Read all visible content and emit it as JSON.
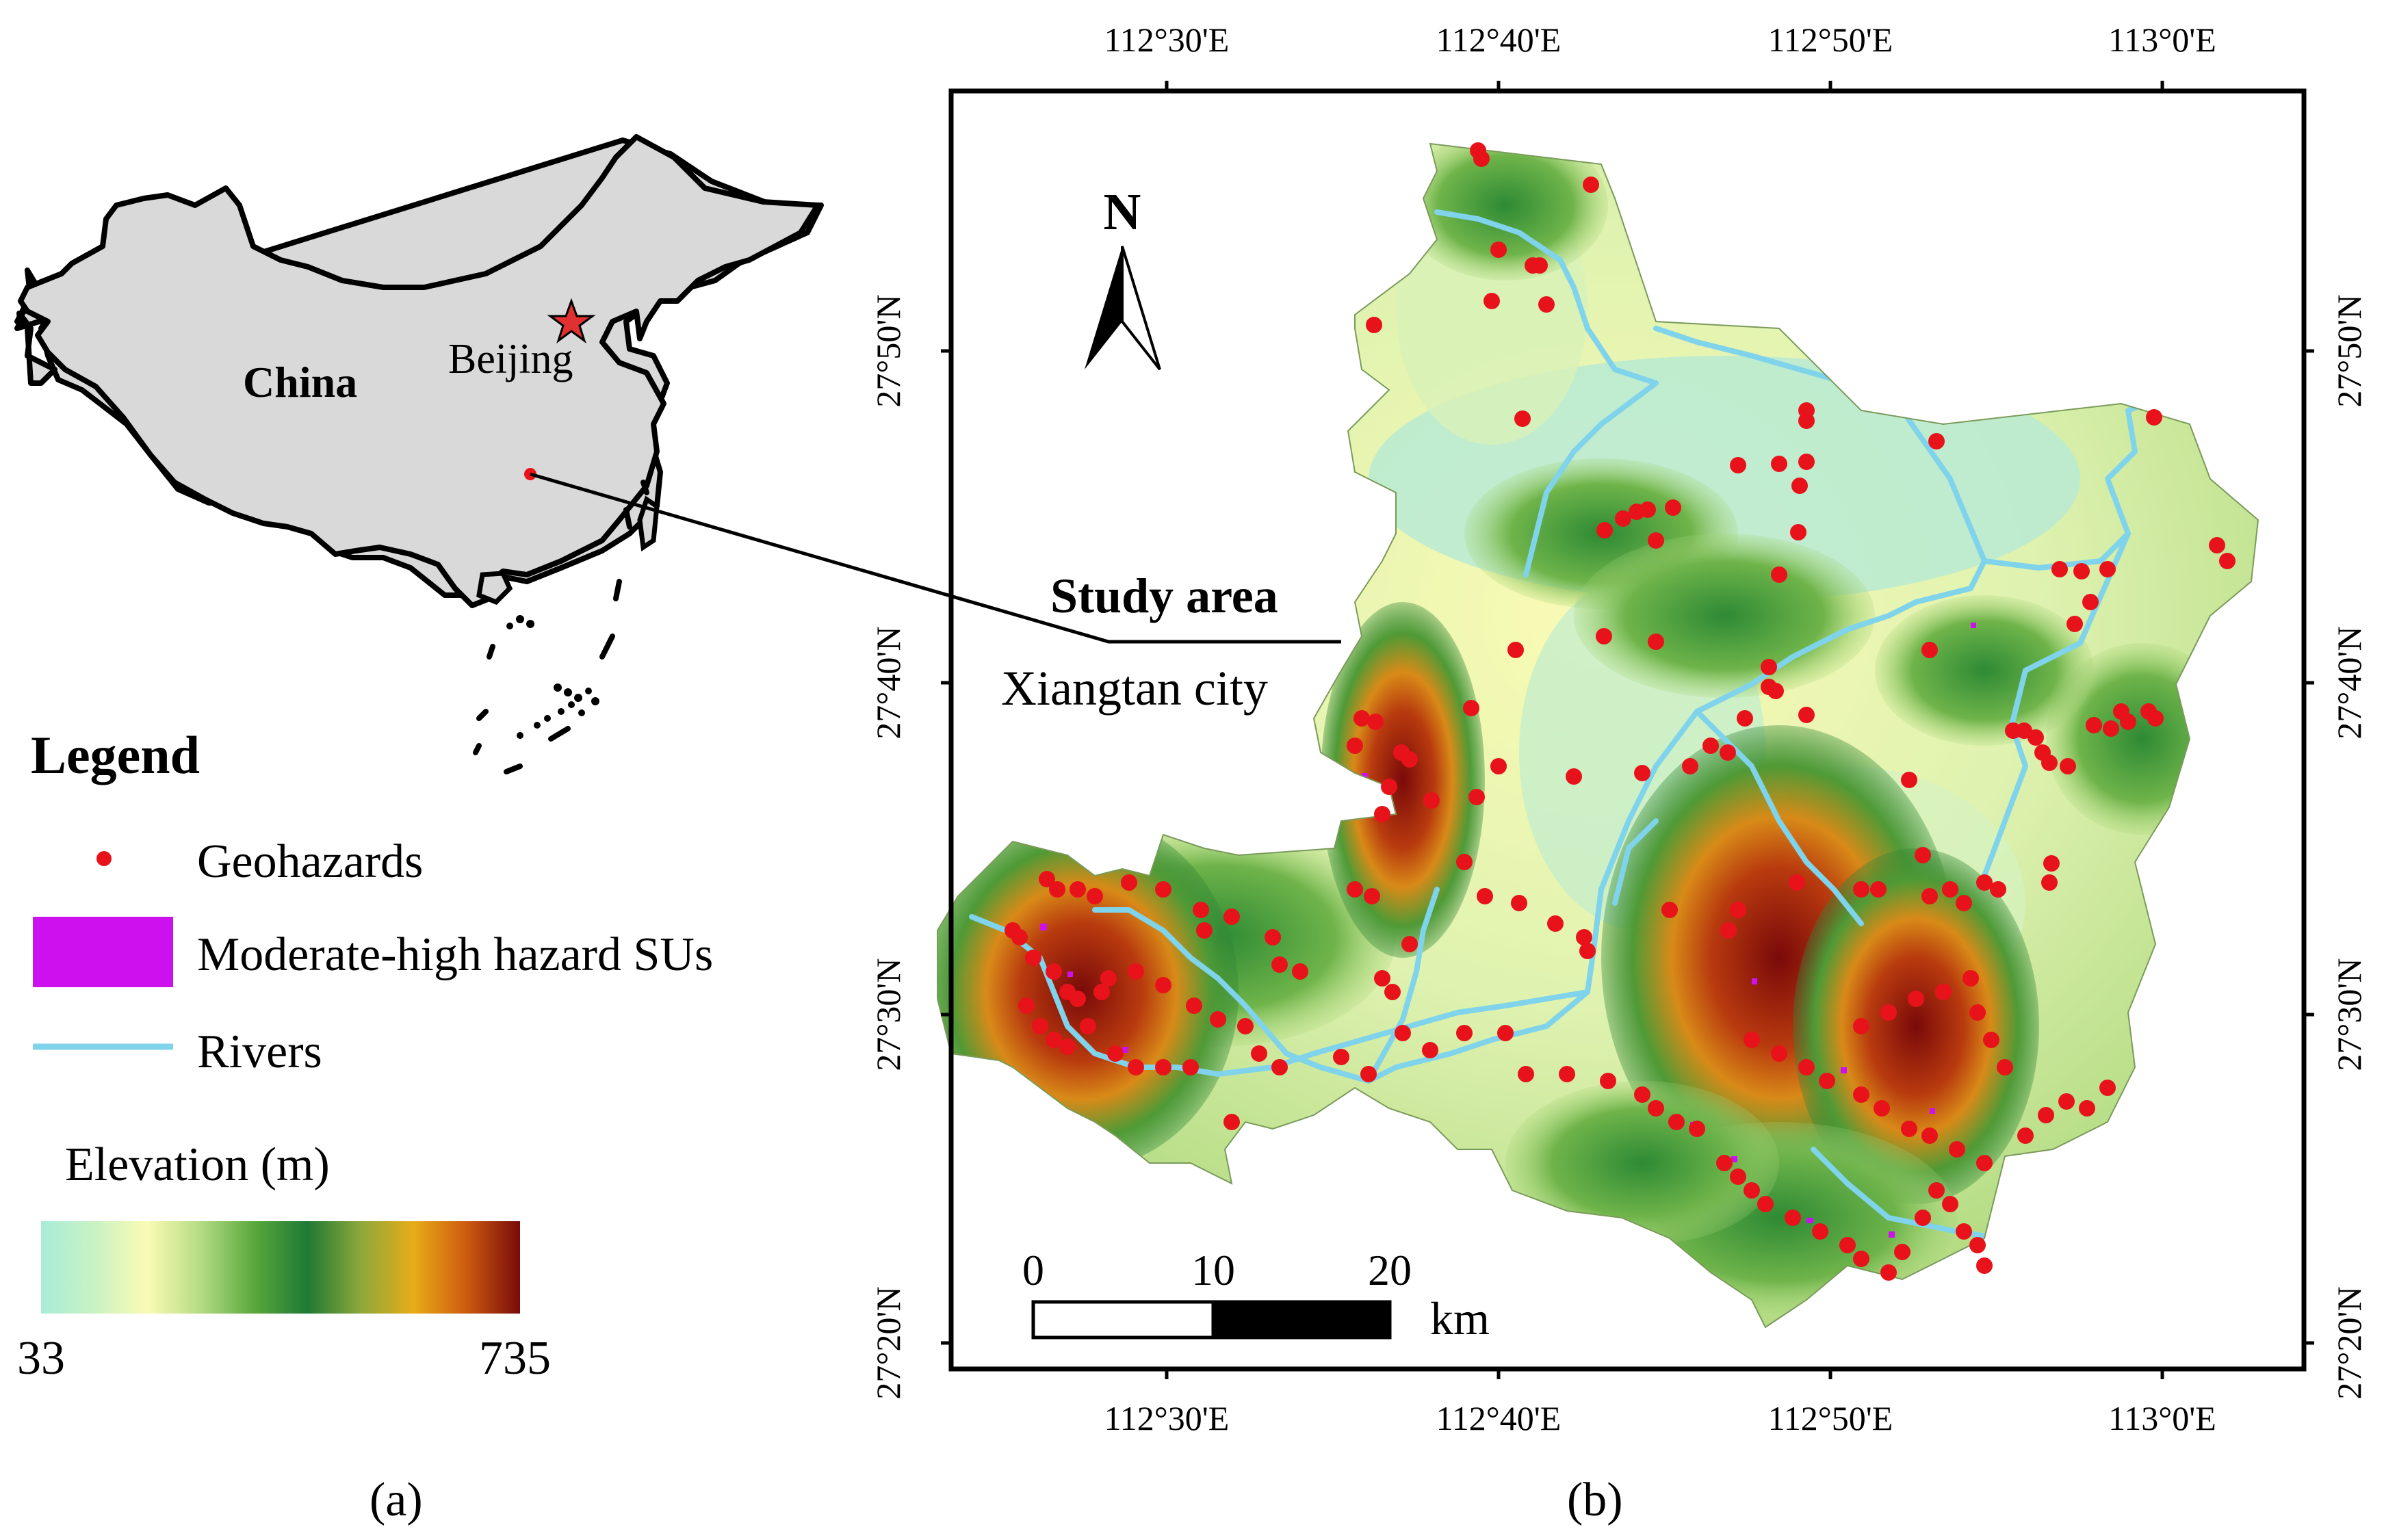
{
  "panel_a": {
    "panel_label": "(a)",
    "country_label": "China",
    "capital_label": "Beijing",
    "legend": {
      "title": "Legend",
      "items": [
        {
          "label": "Geohazards",
          "color": "#e8121b",
          "symbol": "dot"
        },
        {
          "label": "Moderate-high hazard SUs",
          "color": "#cc11ee",
          "symbol": "patch"
        },
        {
          "label": "Rivers",
          "color": "#7fd3ea",
          "symbol": "line"
        }
      ],
      "elevation": {
        "title": "Elevation (m)",
        "min_label": "33",
        "max_label": "735",
        "min": 33,
        "max": 735,
        "colors": [
          "#a8ecd8",
          "#c9f2c4",
          "#fafbb4",
          "#b4dc84",
          "#5aa83c",
          "#1e7a34",
          "#8ca83a",
          "#e8ac18",
          "#cc5a10",
          "#7a0a0a"
        ]
      }
    }
  },
  "panel_b": {
    "panel_label": "(b)",
    "study_area_label": "Study area",
    "city_label": "Xiangtan city",
    "north_label": "N",
    "x_ticks": [
      "112°30'E",
      "112°40'E",
      "112°50'E",
      "113°0'E"
    ],
    "y_ticks": [
      "27°50'N",
      "27°40'N",
      "27°30'N",
      "27°20'N"
    ],
    "scale_bar": {
      "labels": [
        "0",
        "10",
        "20"
      ],
      "unit": "km"
    },
    "colors": {
      "geohazard": "#e8121b",
      "river": "#7fd3ea",
      "hazard_su": "#cc11ee",
      "frame": "#000000",
      "china_fill": "#d9d9d9"
    }
  }
}
